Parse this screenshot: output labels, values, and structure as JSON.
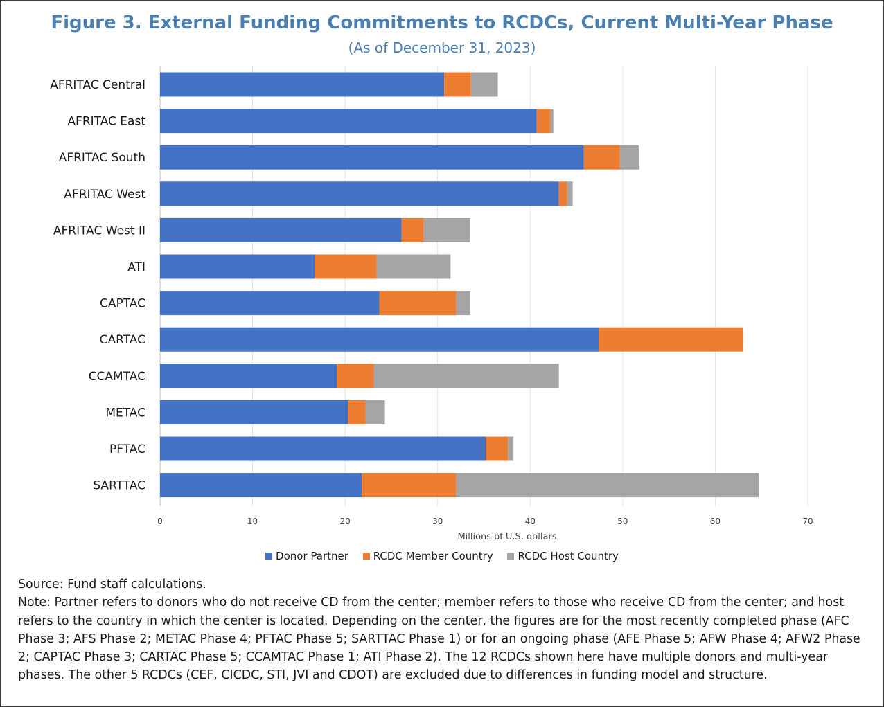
{
  "chart_data": {
    "type": "bar",
    "orientation": "horizontal",
    "stacked": true,
    "title": "Figure 3. External Funding Commitments to RCDCs, Current Multi-Year Phase",
    "subtitle": "(As of December 31, 2023)",
    "xlabel": "Millions of U.S. dollars",
    "ylabel": "",
    "xlim": [
      0,
      70
    ],
    "xticks": [
      0,
      10,
      20,
      30,
      40,
      50,
      60,
      70
    ],
    "grid": "vertical",
    "legend_position": "bottom",
    "categories": [
      "AFRITAC Central",
      "AFRITAC East",
      "AFRITAC South",
      "AFRITAC West",
      "AFRITAC West II",
      "ATI",
      "CAPTAC",
      "CARTAC",
      "CCAMTAC",
      "METAC",
      "PFTAC",
      "SARTTAC"
    ],
    "series": [
      {
        "name": "Donor Partner",
        "color": "#4472c4",
        "values": [
          30.7,
          40.7,
          45.8,
          43.1,
          26.1,
          16.7,
          23.7,
          47.4,
          19.1,
          20.3,
          35.2,
          21.8
        ]
      },
      {
        "name": "RCDC Member Country",
        "color": "#ed7d31",
        "values": [
          2.9,
          1.5,
          3.9,
          0.9,
          2.4,
          6.7,
          8.3,
          15.6,
          4.0,
          1.9,
          2.4,
          10.2
        ]
      },
      {
        "name": "RCDC Host Country",
        "color": "#a5a5a5",
        "values": [
          2.9,
          0.3,
          2.1,
          0.6,
          5.0,
          8.0,
          1.5,
          0.0,
          20.0,
          2.1,
          0.6,
          32.7
        ]
      }
    ]
  },
  "notes": {
    "source": "Source: Fund staff calculations.",
    "note": "Note: Partner refers to donors who do not receive CD from the center; member refers to those who receive CD from the center; and host refers to the country in which the center is located. Depending on the center, the figures are for the most recently completed phase (AFC Phase 3; AFS Phase 2; METAC Phase 4; PFTAC Phase 5; SARTTAC Phase 1) or for an ongoing phase (AFE Phase 5; AFW Phase 4; AFW2 Phase 2; CAPTAC Phase 3; CARTAC Phase 5; CCAMTAC Phase 1; ATI Phase 2). The 12 RCDCs shown here have multiple donors and multi-year phases. The other 5 RCDCs (CEF, CICDC, STI, JVI and CDOT) are excluded due to differences in funding model and structure."
  }
}
